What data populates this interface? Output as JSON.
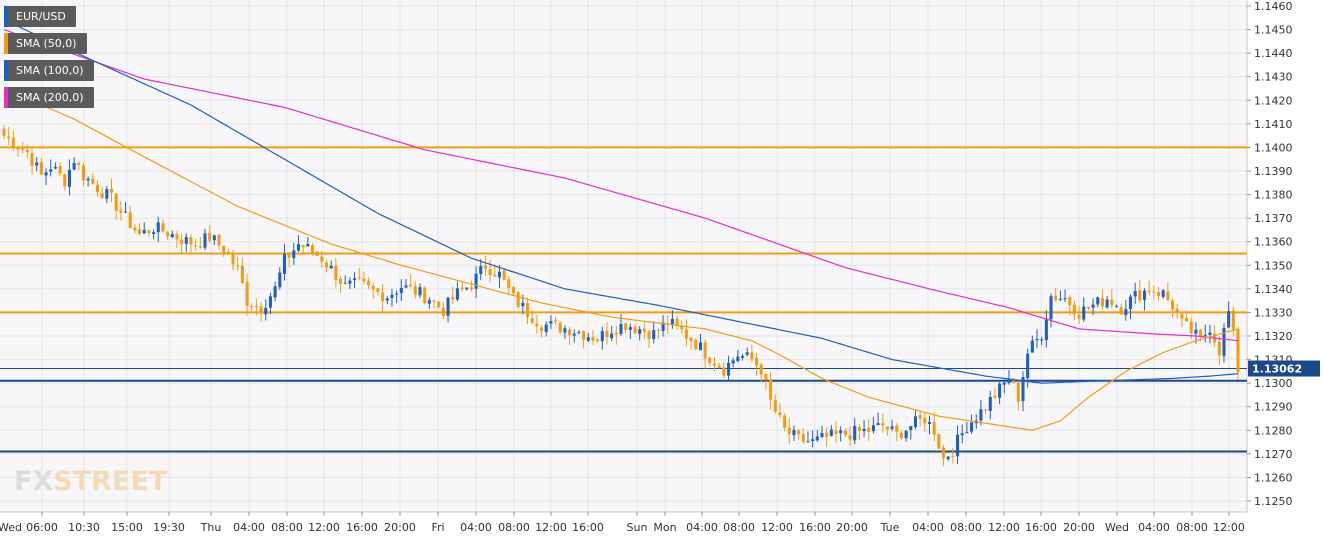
{
  "legend": [
    {
      "label": "EUR/USD",
      "color": "#1f5fbf"
    },
    {
      "label": "SMA (50,0)",
      "color": "#f39c12"
    },
    {
      "label": "SMA (100,0)",
      "color": "#1f5fbf"
    },
    {
      "label": "SMA (200,0)",
      "color": "#e62bd0"
    }
  ],
  "logo": {
    "part1": "FX",
    "part2": "STREET"
  },
  "current_price": {
    "label": "1.13062",
    "value": 1.13062
  },
  "chart_data": {
    "type": "candlestick",
    "title": "",
    "ylim": [
      1.1245,
      1.1462
    ],
    "y_ticks": [
      "1.1460",
      "1.1450",
      "1.1440",
      "1.1430",
      "1.1420",
      "1.1410",
      "1.1400",
      "1.1390",
      "1.1380",
      "1.1370",
      "1.1360",
      "1.1350",
      "1.1340",
      "1.1330",
      "1.1320",
      "1.1310",
      "1.1300",
      "1.1290",
      "1.1280",
      "1.1270",
      "1.1260",
      "1.1250"
    ],
    "x_ticks": [
      "Wed",
      "06:00",
      "10:30",
      "15:00",
      "19:30",
      "Thu",
      "04:00",
      "08:00",
      "12:00",
      "16:00",
      "20:00",
      "Fri",
      "04:00",
      "08:00",
      "12:00",
      "16:00",
      "Sun",
      "Mon",
      "04:00",
      "08:00",
      "12:00",
      "16:00",
      "20:00",
      "Tue",
      "04:00",
      "08:00",
      "12:00",
      "16:00",
      "20:00",
      "Wed",
      "04:00",
      "08:00",
      "12:00"
    ],
    "grid": true,
    "horizontal_levels": [
      {
        "value": 1.14,
        "color": "#f39c12"
      },
      {
        "value": 1.1355,
        "color": "#f39c12"
      },
      {
        "value": 1.133,
        "color": "#f39c12"
      },
      {
        "value": 1.1301,
        "color": "#1a4a8c"
      },
      {
        "value": 1.1271,
        "color": "#1a4a8c"
      }
    ],
    "colors": {
      "up": "#1f5fbf",
      "down": "#f39c12",
      "sma50": "#f39c12",
      "sma100": "#1f5fbf",
      "sma200": "#e62bd0"
    },
    "close_anchors": [
      [
        0,
        1.1405
      ],
      [
        2,
        1.1402
      ],
      [
        5,
        1.1398
      ],
      [
        8,
        1.1388
      ],
      [
        10,
        1.1392
      ],
      [
        13,
        1.1386
      ],
      [
        15,
        1.1395
      ],
      [
        17,
        1.1388
      ],
      [
        20,
        1.1383
      ],
      [
        23,
        1.1378
      ],
      [
        26,
        1.137
      ],
      [
        29,
        1.1363
      ],
      [
        32,
        1.1366
      ],
      [
        35,
        1.1364
      ],
      [
        38,
        1.1361
      ],
      [
        41,
        1.1359
      ],
      [
        44,
        1.1362
      ],
      [
        47,
        1.1357
      ],
      [
        50,
        1.1348
      ],
      [
        52,
        1.1335
      ],
      [
        55,
        1.1332
      ],
      [
        58,
        1.134
      ],
      [
        60,
        1.1352
      ],
      [
        63,
        1.1359
      ],
      [
        65,
        1.1357
      ],
      [
        68,
        1.1353
      ],
      [
        71,
        1.1346
      ],
      [
        73,
        1.1341
      ],
      [
        76,
        1.1342
      ],
      [
        79,
        1.1339
      ],
      [
        82,
        1.1337
      ],
      [
        85,
        1.1341
      ],
      [
        88,
        1.1339
      ],
      [
        91,
        1.1336
      ],
      [
        94,
        1.1331
      ],
      [
        97,
        1.1338
      ],
      [
        100,
        1.1342
      ],
      [
        103,
        1.135
      ],
      [
        106,
        1.1346
      ],
      [
        109,
        1.1336
      ],
      [
        112,
        1.133
      ],
      [
        115,
        1.1325
      ],
      [
        118,
        1.1324
      ],
      [
        121,
        1.1323
      ],
      [
        124,
        1.1321
      ],
      [
        127,
        1.1319
      ],
      [
        130,
        1.1323
      ],
      [
        133,
        1.1325
      ],
      [
        136,
        1.1323
      ],
      [
        139,
        1.1321
      ],
      [
        142,
        1.1326
      ],
      [
        145,
        1.1322
      ],
      [
        148,
        1.1317
      ],
      [
        151,
        1.1311
      ],
      [
        154,
        1.1306
      ],
      [
        157,
        1.1312
      ],
      [
        160,
        1.131
      ],
      [
        162,
        1.1306
      ],
      [
        164,
        1.1292
      ],
      [
        167,
        1.128
      ],
      [
        170,
        1.1276
      ],
      [
        173,
        1.1275
      ],
      [
        176,
        1.1277
      ],
      [
        179,
        1.1278
      ],
      [
        182,
        1.1279
      ],
      [
        185,
        1.128
      ],
      [
        188,
        1.1282
      ],
      [
        191,
        1.1278
      ],
      [
        194,
        1.1282
      ],
      [
        197,
        1.1285
      ],
      [
        199,
        1.128
      ],
      [
        201,
        1.1268
      ],
      [
        203,
        1.1272
      ],
      [
        206,
        1.1282
      ],
      [
        209,
        1.1288
      ],
      [
        212,
        1.1295
      ],
      [
        215,
        1.1302
      ],
      [
        217,
        1.1294
      ],
      [
        219,
        1.1313
      ],
      [
        222,
        1.1321
      ],
      [
        224,
        1.1337
      ],
      [
        227,
        1.1336
      ],
      [
        230,
        1.133
      ],
      [
        233,
        1.1333
      ],
      [
        236,
        1.1336
      ],
      [
        239,
        1.1332
      ],
      [
        242,
        1.1337
      ],
      [
        245,
        1.134
      ],
      [
        248,
        1.1338
      ],
      [
        250,
        1.1333
      ],
      [
        252,
        1.1325
      ],
      [
        254,
        1.1322
      ],
      [
        256,
        1.1318
      ],
      [
        258,
        1.1324
      ],
      [
        260,
        1.1314
      ],
      [
        262,
        1.133
      ],
      [
        263,
        1.132
      ],
      [
        264,
        1.1306
      ]
    ],
    "sma50": [
      [
        0,
        1.1425
      ],
      [
        15,
        1.1412
      ],
      [
        30,
        1.1396
      ],
      [
        50,
        1.1375
      ],
      [
        70,
        1.1359
      ],
      [
        85,
        1.135
      ],
      [
        100,
        1.1342
      ],
      [
        115,
        1.1334
      ],
      [
        130,
        1.1328
      ],
      [
        150,
        1.1323
      ],
      [
        160,
        1.1318
      ],
      [
        166,
        1.1312
      ],
      [
        175,
        1.1302
      ],
      [
        185,
        1.1294
      ],
      [
        200,
        1.1286
      ],
      [
        210,
        1.1283
      ],
      [
        220,
        1.128
      ],
      [
        226,
        1.1284
      ],
      [
        232,
        1.1294
      ],
      [
        240,
        1.1305
      ],
      [
        248,
        1.1313
      ],
      [
        255,
        1.1318
      ],
      [
        264,
        1.1323
      ]
    ],
    "sma100": [
      [
        0,
        1.1454
      ],
      [
        20,
        1.1436
      ],
      [
        40,
        1.1418
      ],
      [
        60,
        1.1395
      ],
      [
        80,
        1.1372
      ],
      [
        100,
        1.1353
      ],
      [
        120,
        1.134
      ],
      [
        140,
        1.1333
      ],
      [
        160,
        1.1325
      ],
      [
        175,
        1.1319
      ],
      [
        190,
        1.131
      ],
      [
        210,
        1.1303
      ],
      [
        222,
        1.13
      ],
      [
        235,
        1.1301
      ],
      [
        250,
        1.1302
      ],
      [
        258,
        1.1303
      ],
      [
        264,
        1.1304
      ]
    ],
    "sma200": [
      [
        0,
        1.145
      ],
      [
        30,
        1.1429
      ],
      [
        60,
        1.1417
      ],
      [
        90,
        1.1399
      ],
      [
        120,
        1.1387
      ],
      [
        150,
        1.137
      ],
      [
        180,
        1.1349
      ],
      [
        200,
        1.1339
      ],
      [
        215,
        1.1332
      ],
      [
        230,
        1.1323
      ],
      [
        245,
        1.1321
      ],
      [
        255,
        1.132
      ],
      [
        264,
        1.1318
      ]
    ]
  }
}
